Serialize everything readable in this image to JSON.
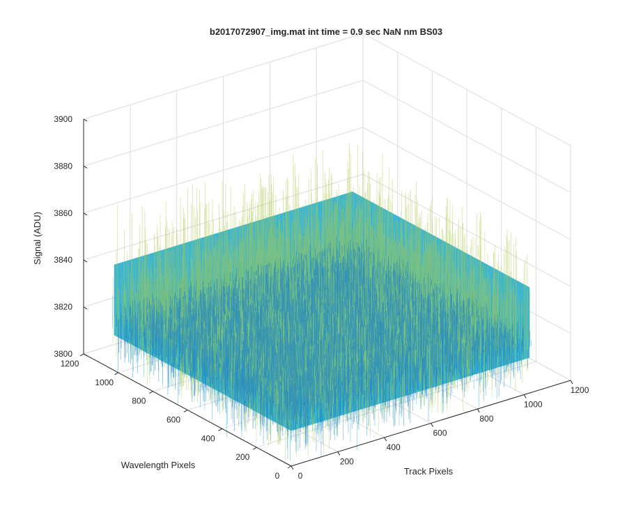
{
  "chart_data": {
    "type": "surface",
    "title": "b2017072907_img.mat int time = 0.9 sec  NaN nm BS03",
    "xlabel": "Track Pixels",
    "ylabel": "Wavelength Pixels",
    "zlabel": "Signal (ADU)",
    "xlim": [
      0,
      1200
    ],
    "ylim": [
      0,
      1200
    ],
    "zlim": [
      3800,
      3900
    ],
    "xticks": [
      "0",
      "200",
      "400",
      "600",
      "800",
      "1000",
      "1200"
    ],
    "yticks": [
      "0",
      "200",
      "400",
      "600",
      "800",
      "1000",
      "1200"
    ],
    "zticks": [
      "3800",
      "3820",
      "3840",
      "3860",
      "3880",
      "3900"
    ],
    "data_extent": {
      "x": [
        0,
        1024
      ],
      "y": [
        0,
        1024
      ]
    },
    "signal": {
      "mean": 3830,
      "typical_range": [
        3815,
        3845
      ],
      "spike_range": [
        3800,
        3870
      ]
    },
    "grid": true,
    "colormap": "parula",
    "colors": {
      "low": "#0a72d6",
      "mid": "#1ca9c8",
      "high": "#a9c94a"
    }
  }
}
